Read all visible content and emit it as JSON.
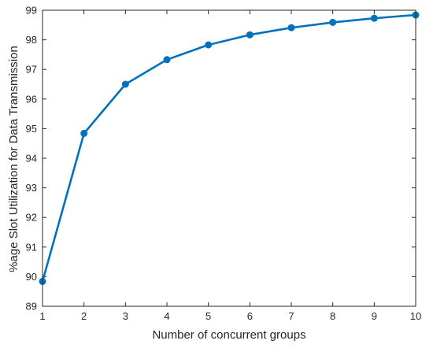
{
  "chart_data": {
    "type": "line",
    "title": "",
    "xlabel": "Number of concurrent groups",
    "ylabel": "%age Slot Utilization for Data Transmission",
    "x": [
      1,
      2,
      3,
      4,
      5,
      6,
      7,
      8,
      9,
      10
    ],
    "series": [
      {
        "values": [
          89.84,
          94.84,
          96.5,
          97.33,
          97.83,
          98.17,
          98.41,
          98.59,
          98.73,
          98.84
        ],
        "color": "#0072BD",
        "marker": "circle"
      }
    ],
    "xlim": [
      1,
      10
    ],
    "ylim": [
      89,
      99
    ],
    "xticks": [
      "1",
      "2",
      "3",
      "4",
      "5",
      "6",
      "7",
      "8",
      "9",
      "10"
    ],
    "yticks": [
      "89",
      "90",
      "91",
      "92",
      "93",
      "94",
      "95",
      "96",
      "97",
      "98",
      "99"
    ],
    "grid": false,
    "legend": "none"
  }
}
